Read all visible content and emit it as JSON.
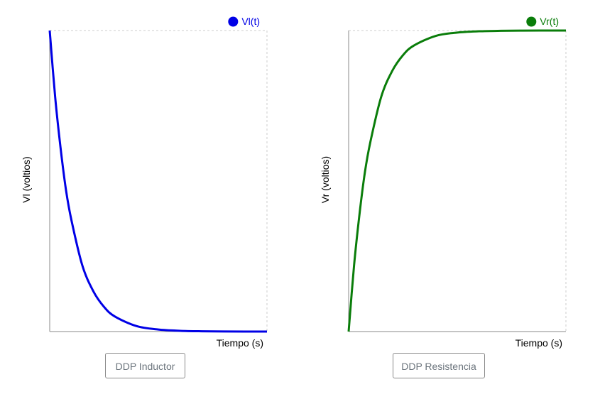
{
  "chart_data": [
    {
      "type": "line",
      "xlabel": "Tiempo (s)",
      "ylabel": "Vl (voltios)",
      "legend_position": "top-right",
      "grid": false,
      "series": [
        {
          "name": "Vl(t)",
          "color": "#0000e6",
          "x": [
            0,
            0.025,
            0.05,
            0.075,
            0.1,
            0.15,
            0.2,
            0.25,
            0.3,
            0.4,
            0.5,
            0.6,
            0.7,
            0.8,
            0.9,
            1.0
          ],
          "y": [
            1.0,
            0.78,
            0.61,
            0.47,
            0.37,
            0.22,
            0.135,
            0.082,
            0.05,
            0.018,
            0.0067,
            0.0025,
            0.0009,
            0.0003,
            0.0001,
            0.0
          ]
        }
      ]
    },
    {
      "type": "line",
      "xlabel": "Tiempo (s)",
      "ylabel": "Vr (voltios)",
      "legend_position": "top-right",
      "grid": false,
      "series": [
        {
          "name": "Vr(t)",
          "color": "#0a7d0a",
          "x": [
            0,
            0.025,
            0.05,
            0.075,
            0.1,
            0.15,
            0.2,
            0.25,
            0.3,
            0.4,
            0.5,
            0.6,
            0.7,
            0.8,
            0.9,
            1.0
          ],
          "y": [
            0.0,
            0.22,
            0.39,
            0.53,
            0.63,
            0.78,
            0.865,
            0.918,
            0.95,
            0.982,
            0.9933,
            0.9975,
            0.9991,
            0.9997,
            0.9999,
            1.0
          ]
        }
      ]
    }
  ],
  "buttons": {
    "inductor": "DDP Inductor",
    "resistencia": "DDP Resistencia"
  }
}
